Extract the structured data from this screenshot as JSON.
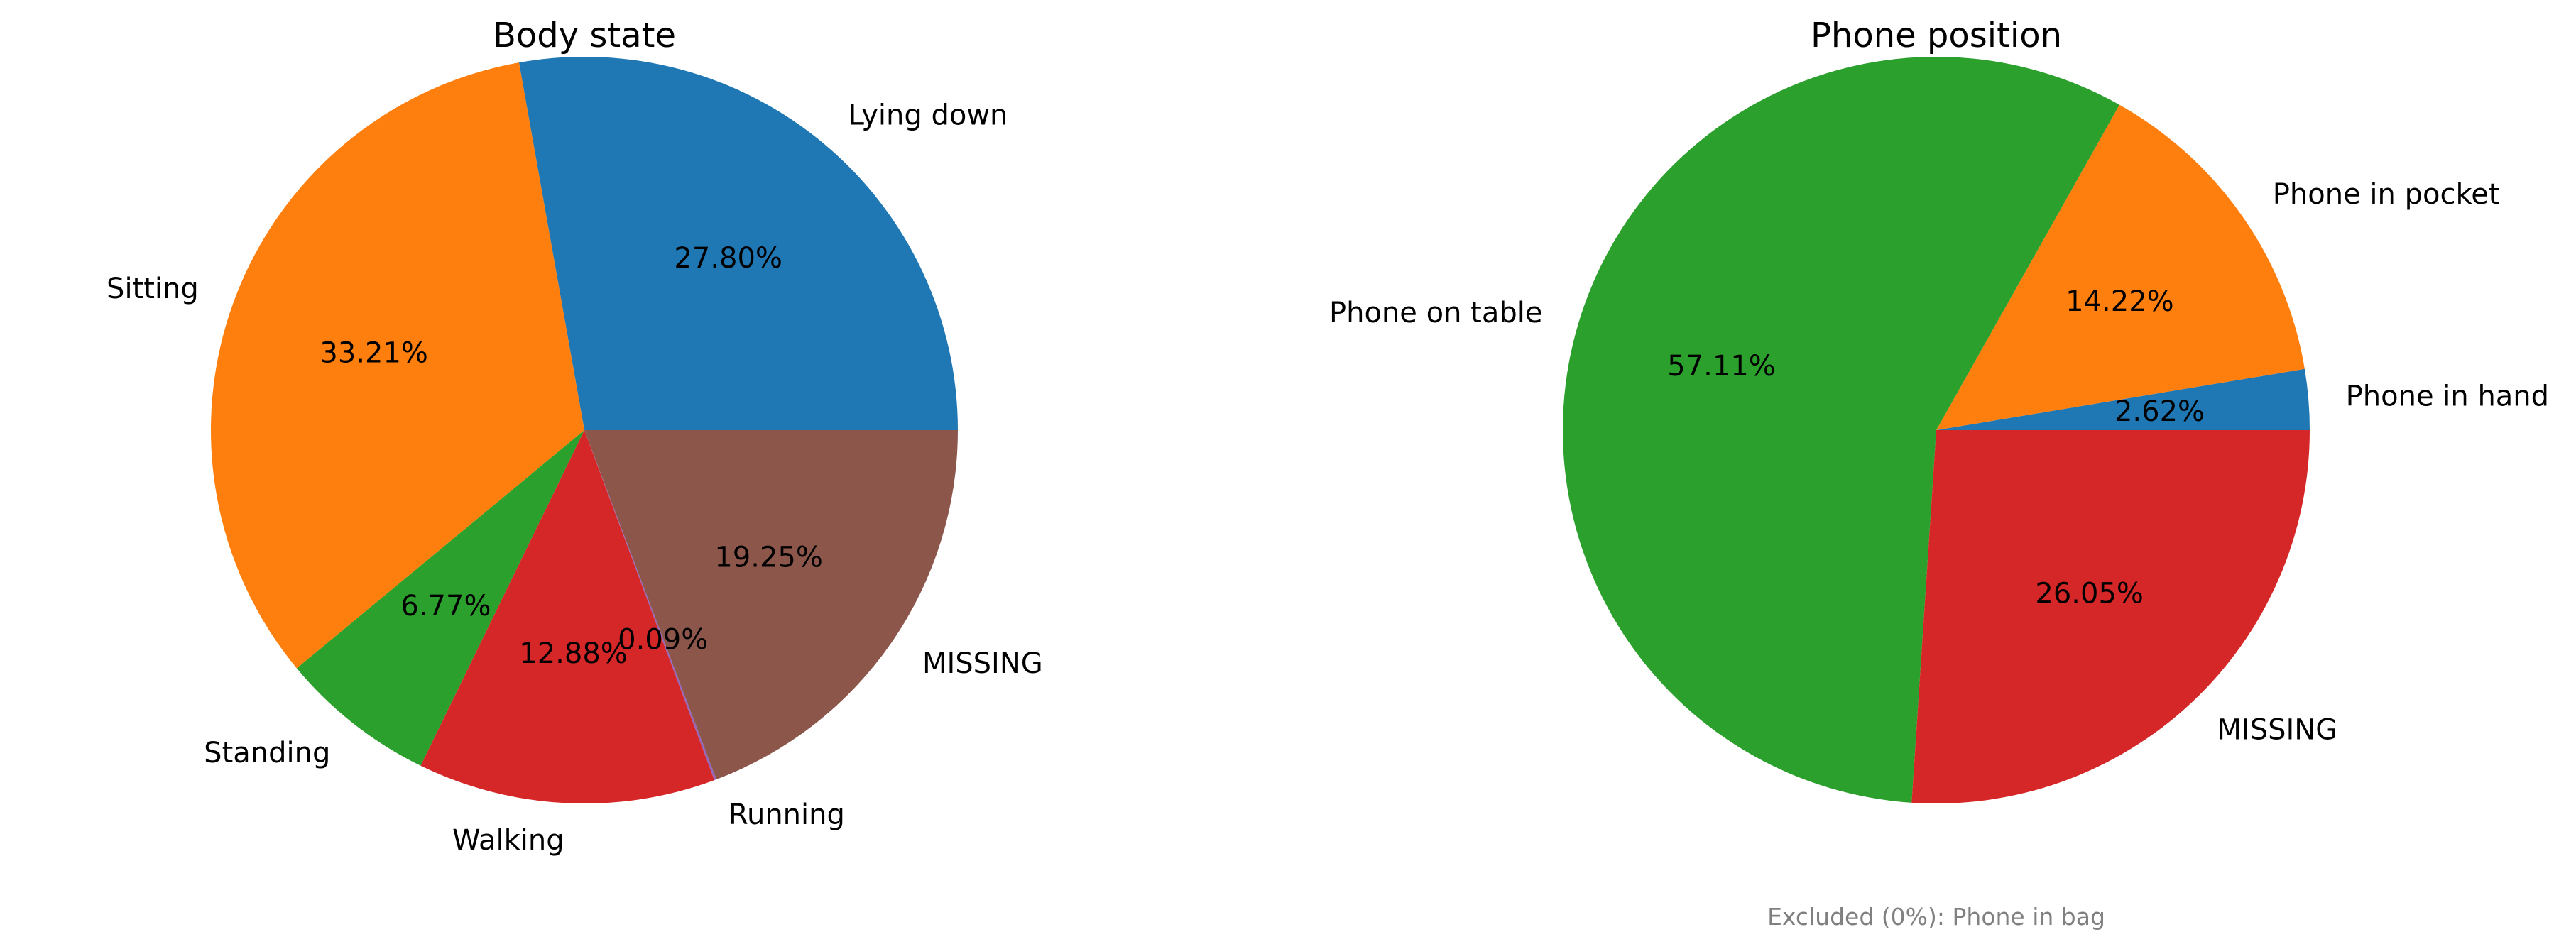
{
  "chart_data": [
    {
      "type": "pie",
      "title": "Body state",
      "slices": [
        {
          "label": "Lying down",
          "value": 27.8,
          "pct_label": "27.80%",
          "color": "#1f77b4"
        },
        {
          "label": "Sitting",
          "value": 33.21,
          "pct_label": "33.21%",
          "color": "#ff7f0e"
        },
        {
          "label": "Standing",
          "value": 6.77,
          "pct_label": "6.77%",
          "color": "#2ca02c"
        },
        {
          "label": "Walking",
          "value": 12.88,
          "pct_label": "12.88%",
          "color": "#d62728"
        },
        {
          "label": "Running",
          "value": 0.09,
          "pct_label": "0.09%",
          "color": "#9467bd"
        },
        {
          "label": "MISSING",
          "value": 19.25,
          "pct_label": "19.25%",
          "color": "#8c564b"
        }
      ],
      "footnote": ""
    },
    {
      "type": "pie",
      "title": "Phone position",
      "slices": [
        {
          "label": "Phone in hand",
          "value": 2.62,
          "pct_label": "2.62%",
          "color": "#1f77b4"
        },
        {
          "label": "Phone in pocket",
          "value": 14.22,
          "pct_label": "14.22%",
          "color": "#ff7f0e"
        },
        {
          "label": "Phone on table",
          "value": 57.11,
          "pct_label": "57.11%",
          "color": "#2ca02c"
        },
        {
          "label": "MISSING",
          "value": 26.05,
          "pct_label": "26.05%",
          "color": "#d62728"
        }
      ],
      "footnote": "Excluded (0%): Phone in bag"
    }
  ]
}
